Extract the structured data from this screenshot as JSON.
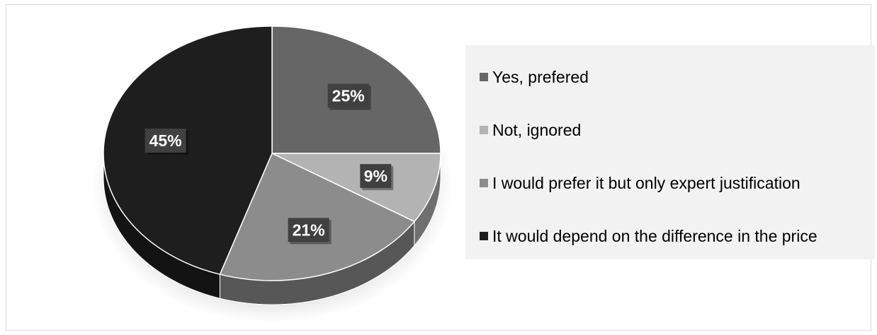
{
  "chart_data": {
    "type": "pie",
    "categories": [
      "Yes, prefered",
      "Not, ignored",
      "I would prefer it but only expert justification",
      "It would depend on the difference in the price"
    ],
    "values": [
      25,
      9,
      21,
      45
    ],
    "data_labels": [
      "25%",
      "9%",
      "21%",
      "45%"
    ],
    "colors": [
      "#666666",
      "#b3b3b3",
      "#8c8c8c",
      "#1e1e1e"
    ],
    "legend_position": "right",
    "style": "3d"
  }
}
